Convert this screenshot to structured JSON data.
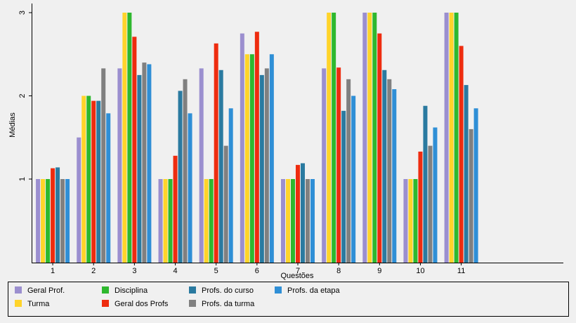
{
  "chart_data": {
    "type": "bar",
    "xlabel": "Questões",
    "ylabel": "Médias",
    "ylim": [
      0.1,
      3
    ],
    "yticks": [
      1,
      2,
      3
    ],
    "grid": false,
    "legend_position": "bottom",
    "categories": [
      "1",
      "2",
      "3",
      "4",
      "5",
      "6",
      "7",
      "8",
      "9",
      "10",
      "11"
    ],
    "extra_category_slots": 2,
    "series": [
      {
        "name": "Geral Prof.",
        "color": "#9b8fcf",
        "values": [
          1,
          1.5,
          2.33,
          1,
          2.33,
          2.75,
          1,
          2.33,
          3,
          1,
          3
        ]
      },
      {
        "name": "Turma",
        "color": "#ffd42a",
        "values": [
          1,
          2,
          3,
          1,
          1,
          2.5,
          1,
          3,
          3,
          1,
          3
        ]
      },
      {
        "name": "Disciplina",
        "color": "#2eb82e",
        "values": [
          1,
          2,
          3,
          1,
          1,
          2.5,
          1,
          3,
          3,
          1,
          3
        ]
      },
      {
        "name": "Geral dos Profs",
        "color": "#ee2c0f",
        "values": [
          1.13,
          1.94,
          2.71,
          1.28,
          2.63,
          2.77,
          1.17,
          2.34,
          2.75,
          1.33,
          2.6
        ]
      },
      {
        "name": "Profs. do curso",
        "color": "#2a7aa0",
        "values": [
          1.14,
          1.94,
          2.25,
          2.06,
          2.31,
          2.25,
          1.19,
          1.82,
          2.31,
          1.88,
          2.13
        ]
      },
      {
        "name": "Profs. da turma",
        "color": "#808080",
        "values": [
          1,
          2.33,
          2.4,
          2.2,
          1.4,
          2.33,
          1,
          2.2,
          2.2,
          1.4,
          1.6
        ]
      },
      {
        "name": "Profs. da etapa",
        "color": "#2f8fd6",
        "values": [
          1,
          1.79,
          2.38,
          1.79,
          1.85,
          2.5,
          1,
          2,
          2.08,
          1.62,
          1.85
        ]
      }
    ]
  }
}
